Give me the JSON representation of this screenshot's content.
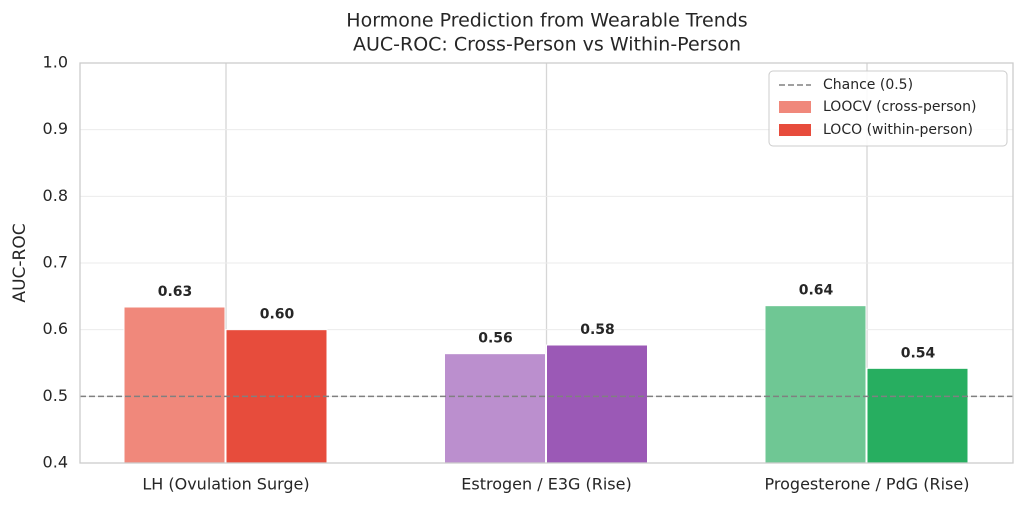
{
  "chart_data": {
    "type": "bar",
    "title": "Hormone Prediction from Wearable Trends",
    "subtitle": "AUC-ROC: Cross-Person vs Within-Person",
    "y_label": "AUC-ROC",
    "categories": [
      "LH (Ovulation Surge)",
      "Estrogen / E3G (Rise)",
      "Progesterone / PdG (Rise)"
    ],
    "series": [
      {
        "name": "LOOCV (cross-person)",
        "color": "#f0887b",
        "colors": [
          "#f0887b",
          "#bb8fce",
          "#6fc794"
        ],
        "values": [
          0.634,
          0.564,
          0.636
        ],
        "value_labels": [
          "0.63",
          "0.56",
          "0.64"
        ]
      },
      {
        "name": "LOCO (within-person)",
        "color": "#e74c3c",
        "colors": [
          "#e74c3c",
          "#9b59b6",
          "#27ae60"
        ],
        "values": [
          0.6,
          0.577,
          0.542
        ],
        "value_labels": [
          "0.60",
          "0.58",
          "0.54"
        ]
      }
    ],
    "reference_line": {
      "value": 0.5,
      "label": "Chance (0.5)",
      "color": "#808080"
    },
    "ylim": [
      0.4,
      1.0
    ],
    "yticks": [
      0.4,
      0.5,
      0.6,
      0.7,
      0.8,
      0.9,
      {
        "value": 1.0,
        "label": "1.0"
      }
    ],
    "grid": true,
    "legend": "upper right"
  }
}
